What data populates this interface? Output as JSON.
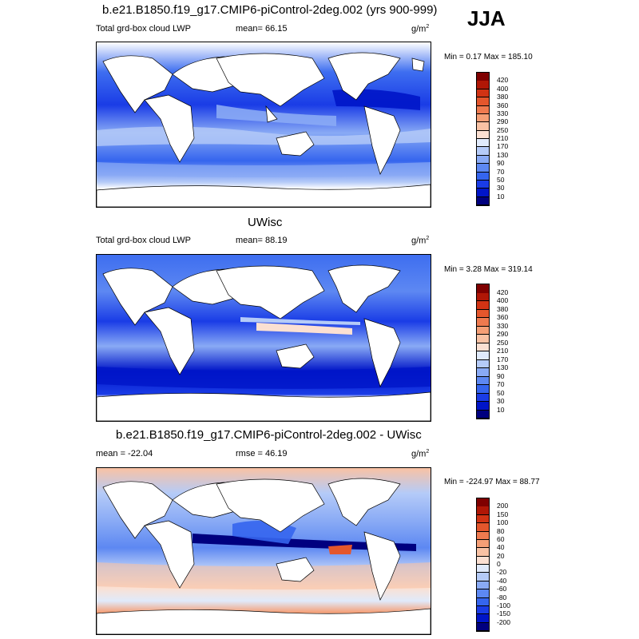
{
  "season": "JJA",
  "panels": [
    {
      "title": "b.e21.B1850.f19_g17.CMIP6-piControl-2deg.002 (yrs 900-999)",
      "left_label": "Total grd-box cloud LWP",
      "center_label": "mean=  66.15",
      "unit_base": "g/m",
      "unit_exp": "2",
      "minmax": "Min =   0.17 Max = 185.10"
    },
    {
      "title": "UWisc",
      "left_label": "Total grd-box cloud LWP",
      "center_label": "mean=  88.19",
      "unit_base": "g/m",
      "unit_exp": "2",
      "minmax": "Min =   3.28 Max = 319.14"
    },
    {
      "title": "b.e21.B1850.f19_g17.CMIP6-piControl-2deg.002 - UWisc",
      "left_label": "mean = -22.04",
      "center_label": "rmse =  46.19",
      "unit_base": "g/m",
      "unit_exp": "2",
      "minmax": "Min = -224.97 Max =  88.77"
    }
  ],
  "chart_data": [
    {
      "type": "heatmap",
      "title": "b.e21.B1850.f19_g17.CMIP6-piControl-2deg.002 (yrs 900-999)",
      "variable": "Total grd-box cloud LWP",
      "units": "g/m2",
      "mean": 66.15,
      "min": 0.17,
      "max": 185.1,
      "colorbar_levels": [
        10,
        30,
        50,
        70,
        90,
        130,
        170,
        210,
        250,
        290,
        330,
        360,
        380,
        400,
        420
      ],
      "colorbar_colors": [
        "#00007f",
        "#0015c8",
        "#1a3ce6",
        "#3565ee",
        "#5d88f2",
        "#89aaf5",
        "#b5cbf8",
        "#e0eafb",
        "#fbe0d2",
        "#f9c2a4",
        "#f59f76",
        "#ef7a4f",
        "#e4562c",
        "#d13314",
        "#b01706",
        "#7f0000"
      ]
    },
    {
      "type": "heatmap",
      "title": "UWisc",
      "variable": "Total grd-box cloud LWP",
      "units": "g/m2",
      "mean": 88.19,
      "min": 3.28,
      "max": 319.14,
      "colorbar_levels": [
        10,
        30,
        50,
        70,
        90,
        130,
        170,
        210,
        250,
        290,
        330,
        360,
        380,
        400,
        420
      ],
      "colorbar_colors": [
        "#00007f",
        "#0015c8",
        "#1a3ce6",
        "#3565ee",
        "#5d88f2",
        "#89aaf5",
        "#b5cbf8",
        "#e0eafb",
        "#fbe0d2",
        "#f9c2a4",
        "#f59f76",
        "#ef7a4f",
        "#e4562c",
        "#d13314",
        "#b01706",
        "#7f0000"
      ]
    },
    {
      "type": "heatmap",
      "title": "b.e21.B1850.f19_g17.CMIP6-piControl-2deg.002 - UWisc",
      "units": "g/m2",
      "mean": -22.04,
      "rmse": 46.19,
      "min": -224.97,
      "max": 88.77,
      "colorbar_levels": [
        -200,
        -150,
        -100,
        -80,
        -60,
        -40,
        -20,
        0,
        20,
        40,
        60,
        80,
        100,
        150,
        200
      ],
      "colorbar_colors": [
        "#00007f",
        "#0015c8",
        "#1a3ce6",
        "#3565ee",
        "#5d88f2",
        "#89aaf5",
        "#b5cbf8",
        "#e0eafb",
        "#fbe0d2",
        "#f9c2a4",
        "#f59f76",
        "#ef7a4f",
        "#e4562c",
        "#d13314",
        "#b01706",
        "#7f0000"
      ]
    }
  ]
}
